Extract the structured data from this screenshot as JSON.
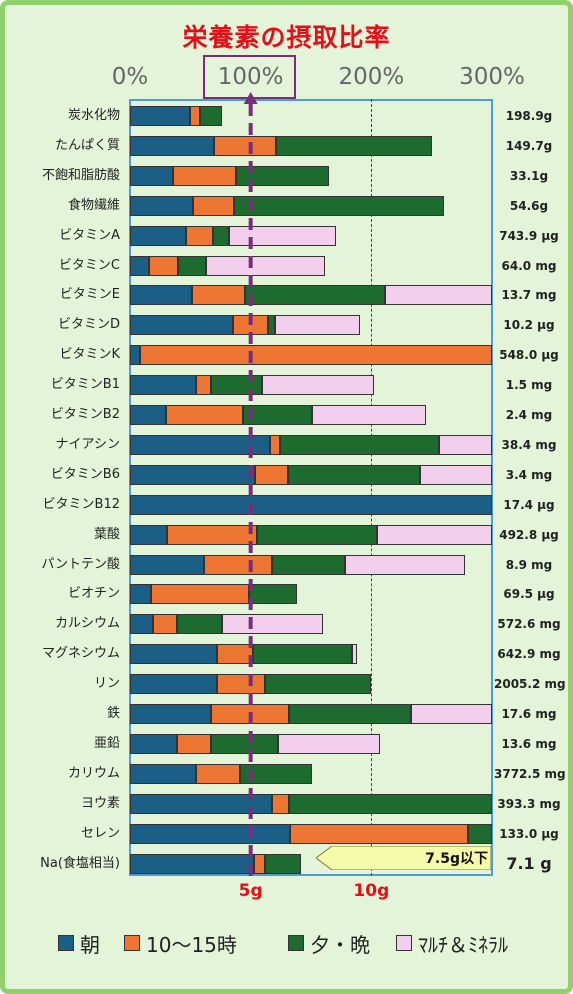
{
  "title": "栄養素の摂取比率",
  "colors": {
    "breakfast": "#1c5f86",
    "snack": "#ed7633",
    "dinner": "#1d6b2e",
    "supplement": "#f2cfec",
    "ref_line": "#7a2e7a",
    "text_red": "#e3101a"
  },
  "chart_data": {
    "type": "bar",
    "orientation": "horizontal-stacked",
    "title": "栄養素の摂取比率",
    "x_tick_labels": [
      "0%",
      "100%",
      "200%",
      "300%"
    ],
    "xlim": [
      0,
      300
    ],
    "reference_line": 100,
    "series": [
      {
        "name": "朝",
        "color": "#1c5f86"
      },
      {
        "name": "10～15時",
        "color": "#ed7633"
      },
      {
        "name": "夕・晩",
        "color": "#1d6b2e"
      },
      {
        "name": "ﾏﾙﾁ＆ﾐﾈﾗﾙ",
        "color": "#f2cfec"
      }
    ],
    "rows": [
      {
        "name": "炭水化物",
        "amount": "198.9g",
        "values": [
          50,
          8,
          18,
          0
        ]
      },
      {
        "name": "たんぱく質",
        "amount": "149.7g",
        "values": [
          70,
          51,
          129,
          0
        ]
      },
      {
        "name": "不飽和脂肪酸",
        "amount": "33.1g",
        "values": [
          36,
          52,
          77,
          0
        ]
      },
      {
        "name": "食物繊維",
        "amount": "54.6g",
        "values": [
          52,
          34,
          174,
          0
        ]
      },
      {
        "name": "ビタミンA",
        "amount": "743.9 μg",
        "values": [
          46,
          23,
          13,
          89
        ]
      },
      {
        "name": "ビタミンC",
        "amount": "64.0 mg",
        "values": [
          16,
          24,
          23,
          99
        ]
      },
      {
        "name": "ビタミンE",
        "amount": "13.7 mg",
        "values": [
          51,
          44,
          116,
          89
        ]
      },
      {
        "name": "ビタミンD",
        "amount": "10.2 μg",
        "values": [
          85,
          29,
          6,
          71
        ]
      },
      {
        "name": "ビタミンK",
        "amount": "548.0 μg",
        "values": [
          8,
          292,
          0,
          0
        ]
      },
      {
        "name": "ビタミンB1",
        "amount": "1.5 mg",
        "values": [
          55,
          12,
          42,
          93
        ]
      },
      {
        "name": "ビタミンB2",
        "amount": "2.4 mg",
        "values": [
          30,
          64,
          57,
          94
        ]
      },
      {
        "name": "ナイアシン",
        "amount": "38.4 mg",
        "values": [
          116,
          8,
          132,
          44
        ]
      },
      {
        "name": "ビタミンB6",
        "amount": "3.4 mg",
        "values": [
          104,
          27,
          109,
          60
        ]
      },
      {
        "name": "ビタミンB12",
        "amount": "17.4 μg",
        "values": [
          300,
          0,
          0,
          0
        ]
      },
      {
        "name": "葉酸",
        "amount": "492.8 μg",
        "values": [
          31,
          74,
          100,
          95
        ]
      },
      {
        "name": "パントテン酸",
        "amount": "8.9 mg",
        "values": [
          61,
          57,
          60,
          100
        ]
      },
      {
        "name": "ビオチン",
        "amount": "69.5 μg",
        "values": [
          17,
          82,
          39,
          0
        ]
      },
      {
        "name": "カルシウム",
        "amount": "572.6 mg",
        "values": [
          19,
          20,
          37,
          84
        ]
      },
      {
        "name": "マグネシウム",
        "amount": "642.9 mg",
        "values": [
          72,
          30,
          82,
          4
        ]
      },
      {
        "name": "リン",
        "amount": "2005.2 mg",
        "values": [
          72,
          40,
          88,
          0
        ]
      },
      {
        "name": "鉄",
        "amount": "17.6 mg",
        "values": [
          67,
          65,
          101,
          67
        ]
      },
      {
        "name": "亜鉛",
        "amount": "13.6 mg",
        "values": [
          39,
          28,
          56,
          84
        ]
      },
      {
        "name": "カリウム",
        "amount": "3772.5 mg",
        "values": [
          55,
          36,
          60,
          0
        ]
      },
      {
        "name": "ヨウ素",
        "amount": "393.3 mg",
        "values": [
          118,
          14,
          168,
          0
        ]
      },
      {
        "name": "セレン",
        "amount": "133.0 μg",
        "values": [
          133,
          147,
          20,
          0
        ]
      },
      {
        "name": "Na(食塩相当)",
        "amount": "7.1 g",
        "values": [
          103,
          9,
          30,
          0
        ]
      }
    ],
    "salt_axis_labels": [
      "5g",
      "10g"
    ],
    "salt_axis_values": [
      5,
      10
    ],
    "salt_target_label": "7.5g以下"
  }
}
